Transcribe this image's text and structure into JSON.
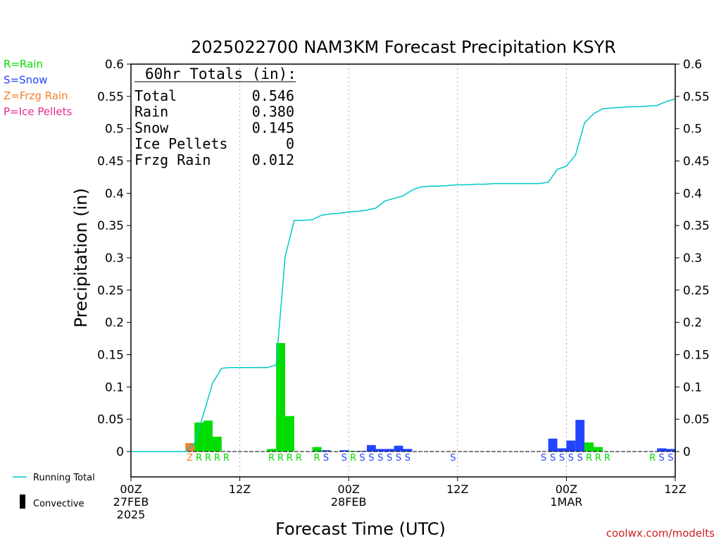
{
  "chart_data": {
    "type": "bar",
    "title": "2025022700 NAM3KM Forecast Precipitation KSYR",
    "xlabel": "Forecast Time (UTC)",
    "ylabel": "Precipitation (in)",
    "ylim": [
      0,
      0.6
    ],
    "xlim_hours": [
      0,
      60
    ],
    "y_ticks": [
      "0",
      "0.05",
      "0.1",
      "0.15",
      "0.2",
      "0.25",
      "0.3",
      "0.35",
      "0.4",
      "0.45",
      "0.5",
      "0.55",
      "0.6"
    ],
    "x_ticks": [
      {
        "hour": 0,
        "lines": [
          "00Z",
          "27FEB",
          "2025"
        ]
      },
      {
        "hour": 12,
        "lines": [
          "12Z"
        ]
      },
      {
        "hour": 24,
        "lines": [
          "00Z",
          "28FEB"
        ]
      },
      {
        "hour": 36,
        "lines": [
          "12Z"
        ]
      },
      {
        "hour": 48,
        "lines": [
          "00Z",
          "1MAR"
        ]
      },
      {
        "hour": 60,
        "lines": [
          "12Z"
        ]
      }
    ],
    "hourly_precip": [
      {
        "hour": 7,
        "value": 0.013,
        "type": "Z"
      },
      {
        "hour": 8,
        "value": 0.045,
        "type": "R"
      },
      {
        "hour": 9,
        "value": 0.048,
        "type": "R"
      },
      {
        "hour": 10,
        "value": 0.023,
        "type": "R"
      },
      {
        "hour": 11,
        "value": 0.0,
        "type": "R"
      },
      {
        "hour": 16,
        "value": 0.004,
        "type": "R"
      },
      {
        "hour": 17,
        "value": 0.168,
        "type": "R"
      },
      {
        "hour": 18,
        "value": 0.055,
        "type": "R"
      },
      {
        "hour": 19,
        "value": 0.0,
        "type": "R"
      },
      {
        "hour": 21,
        "value": 0.007,
        "type": "R"
      },
      {
        "hour": 22,
        "value": 0.002,
        "type": "S"
      },
      {
        "hour": 24,
        "value": 0.002,
        "type": "S"
      },
      {
        "hour": 25,
        "value": 0.001,
        "type": "R"
      },
      {
        "hour": 26,
        "value": 0.001,
        "type": "S"
      },
      {
        "hour": 27,
        "value": 0.01,
        "type": "S"
      },
      {
        "hour": 28,
        "value": 0.004,
        "type": "S"
      },
      {
        "hour": 29,
        "value": 0.004,
        "type": "S"
      },
      {
        "hour": 30,
        "value": 0.009,
        "type": "S"
      },
      {
        "hour": 31,
        "value": 0.004,
        "type": "S"
      },
      {
        "hour": 36,
        "value": 0.0,
        "type": "S"
      },
      {
        "hour": 47,
        "value": 0.02,
        "type": "S"
      },
      {
        "hour": 48,
        "value": 0.005,
        "type": "S"
      },
      {
        "hour": 49,
        "value": 0.017,
        "type": "S"
      },
      {
        "hour": 50,
        "value": 0.049,
        "type": "S"
      },
      {
        "hour": 51,
        "value": 0.014,
        "type": "R"
      },
      {
        "hour": 52,
        "value": 0.007,
        "type": "R"
      },
      {
        "hour": 53,
        "value": 0.0,
        "type": "R"
      },
      {
        "hour": 58,
        "value": 0.0,
        "type": "R"
      },
      {
        "hour": 59,
        "value": 0.005,
        "type": "S"
      },
      {
        "hour": 60,
        "value": 0.004,
        "type": "S"
      }
    ],
    "running_total": {
      "name": "Running Total",
      "points": [
        [
          0,
          0.0
        ],
        [
          1,
          0.0
        ],
        [
          2,
          0.0
        ],
        [
          3,
          0.0
        ],
        [
          4,
          0.0
        ],
        [
          5,
          0.0
        ],
        [
          6,
          0.0
        ],
        [
          7,
          0.013
        ],
        [
          8,
          0.058
        ],
        [
          9,
          0.106
        ],
        [
          10,
          0.129
        ],
        [
          11,
          0.13
        ],
        [
          12,
          0.13
        ],
        [
          13,
          0.13
        ],
        [
          14,
          0.13
        ],
        [
          15,
          0.13
        ],
        [
          16,
          0.134
        ],
        [
          17,
          0.302
        ],
        [
          18,
          0.358
        ],
        [
          19,
          0.358
        ],
        [
          20,
          0.359
        ],
        [
          21,
          0.366
        ],
        [
          22,
          0.368
        ],
        [
          23,
          0.369
        ],
        [
          24,
          0.371
        ],
        [
          25,
          0.372
        ],
        [
          26,
          0.374
        ],
        [
          27,
          0.377
        ],
        [
          28,
          0.388
        ],
        [
          29,
          0.392
        ],
        [
          30,
          0.396
        ],
        [
          31,
          0.405
        ],
        [
          32,
          0.41
        ],
        [
          33,
          0.411
        ],
        [
          34,
          0.411
        ],
        [
          35,
          0.412
        ],
        [
          36,
          0.413
        ],
        [
          37,
          0.413
        ],
        [
          38,
          0.414
        ],
        [
          39,
          0.414
        ],
        [
          40,
          0.415
        ],
        [
          41,
          0.415
        ],
        [
          42,
          0.415
        ],
        [
          43,
          0.415
        ],
        [
          44,
          0.415
        ],
        [
          45,
          0.415
        ],
        [
          46,
          0.417
        ],
        [
          47,
          0.437
        ],
        [
          48,
          0.442
        ],
        [
          49,
          0.459
        ],
        [
          50,
          0.509
        ],
        [
          51,
          0.523
        ],
        [
          52,
          0.531
        ],
        [
          53,
          0.532
        ],
        [
          54,
          0.533
        ],
        [
          55,
          0.534
        ],
        [
          56,
          0.534
        ],
        [
          57,
          0.535
        ],
        [
          58,
          0.536
        ],
        [
          59,
          0.542
        ],
        [
          60,
          0.546
        ]
      ]
    },
    "type_labels": [
      {
        "hour": 7,
        "text": "Z"
      },
      {
        "hour": 8,
        "text": "R"
      },
      {
        "hour": 9,
        "text": "R"
      },
      {
        "hour": 10,
        "text": "R"
      },
      {
        "hour": 11,
        "text": "R"
      },
      {
        "hour": 16,
        "text": "R"
      },
      {
        "hour": 17,
        "text": "R"
      },
      {
        "hour": 18,
        "text": "R"
      },
      {
        "hour": 19,
        "text": "R"
      },
      {
        "hour": 21,
        "text": "R"
      },
      {
        "hour": 22,
        "text": "S"
      },
      {
        "hour": 24,
        "text": "S"
      },
      {
        "hour": 25,
        "text": "R"
      },
      {
        "hour": 26,
        "text": "S"
      },
      {
        "hour": 27,
        "text": "S"
      },
      {
        "hour": 28,
        "text": "S"
      },
      {
        "hour": 29,
        "text": "S"
      },
      {
        "hour": 30,
        "text": "S"
      },
      {
        "hour": 31,
        "text": "S"
      },
      {
        "hour": 36,
        "text": "S"
      },
      {
        "hour": 46,
        "text": "S"
      },
      {
        "hour": 47,
        "text": "S"
      },
      {
        "hour": 48,
        "text": "S"
      },
      {
        "hour": 49,
        "text": "S"
      },
      {
        "hour": 50,
        "text": "S"
      },
      {
        "hour": 51,
        "text": "R"
      },
      {
        "hour": 52,
        "text": "R"
      },
      {
        "hour": 53,
        "text": "R"
      },
      {
        "hour": 58,
        "text": "R"
      },
      {
        "hour": 59,
        "text": "S"
      },
      {
        "hour": 60,
        "text": "S"
      }
    ],
    "colors": {
      "R": "#00dd00",
      "S": "#2244ff",
      "Z": "#f08030",
      "P": "#e82890",
      "running_total": "#00c8c8",
      "axis": "#000000",
      "grid": "#aaaaaa"
    },
    "type_legend": [
      {
        "key": "R",
        "text": "R=Rain"
      },
      {
        "key": "S",
        "text": "S=Snow"
      },
      {
        "key": "Z",
        "text": "Z=Frzg Rain"
      },
      {
        "key": "P",
        "text": "P=Ice Pellets"
      }
    ],
    "bottom_legend": {
      "running_total": "Running Total",
      "convective": "Convective"
    },
    "totals_box": {
      "title": "60hr Totals (in):",
      "rows": [
        {
          "label": "Total",
          "value": "0.546"
        },
        {
          "label": "Rain",
          "value": "0.380"
        },
        {
          "label": "Snow",
          "value": "0.145"
        },
        {
          "label": "Ice Pellets",
          "value": "0"
        },
        {
          "label": "Frzg Rain",
          "value": "0.012"
        }
      ]
    },
    "credit": "coolwx.com/modelts"
  }
}
